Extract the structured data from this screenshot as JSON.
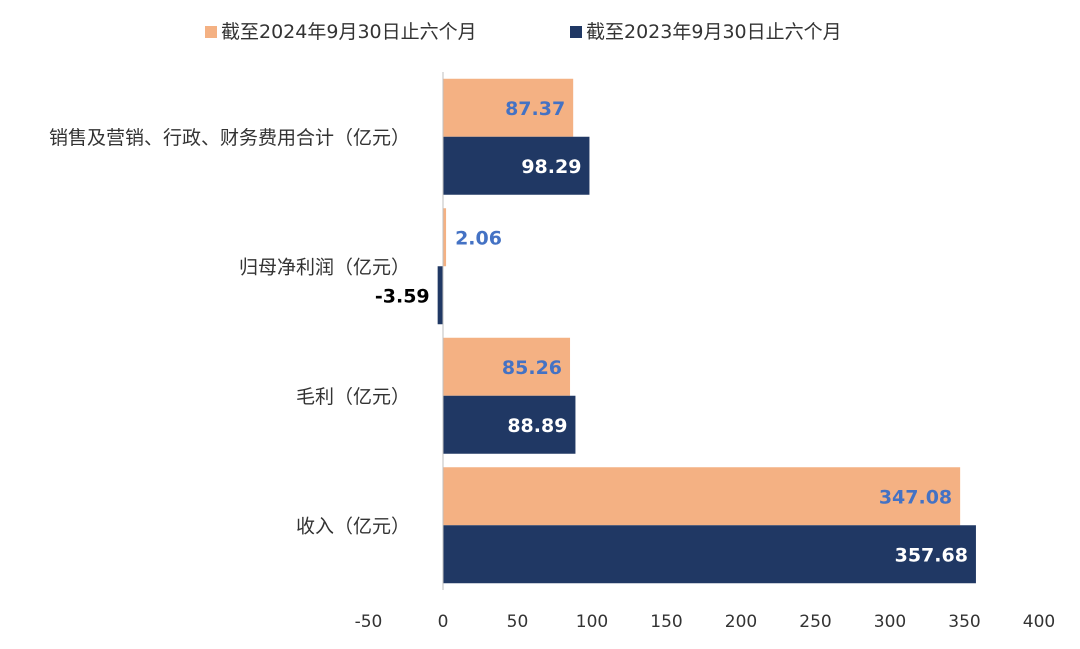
{
  "chart_data": {
    "type": "bar",
    "orientation": "horizontal",
    "categories": [
      "销售及营销、行政、财务费用合计（亿元）",
      "归母净利润（亿元）",
      "毛利（亿元）",
      "收入（亿元）"
    ],
    "series": [
      {
        "name": "截至2024年9月30日止六个月",
        "color": "#F4B183",
        "values": [
          87.37,
          2.06,
          85.26,
          347.08
        ]
      },
      {
        "name": "截至2023年9月30日止六个月",
        "color": "#203864",
        "values": [
          98.29,
          -3.59,
          88.89,
          357.68
        ]
      }
    ],
    "value_labels": [
      [
        "87.37",
        "2.06",
        "85.26",
        "347.08"
      ],
      [
        "98.29",
        "-3.59",
        "88.89",
        "357.68"
      ]
    ],
    "label_colors": {
      "series0": "#4472C4",
      "series1_inside": "#FFFFFF",
      "series1_outside": "#000000"
    },
    "xlim": [
      -50,
      400
    ],
    "xticks": [
      "-50",
      "0",
      "50",
      "100",
      "150",
      "200",
      "250",
      "300",
      "350",
      "400"
    ],
    "xtick_values": [
      -50,
      0,
      50,
      100,
      150,
      200,
      250,
      300,
      350,
      400
    ],
    "grid": false,
    "legend_position": "top"
  }
}
